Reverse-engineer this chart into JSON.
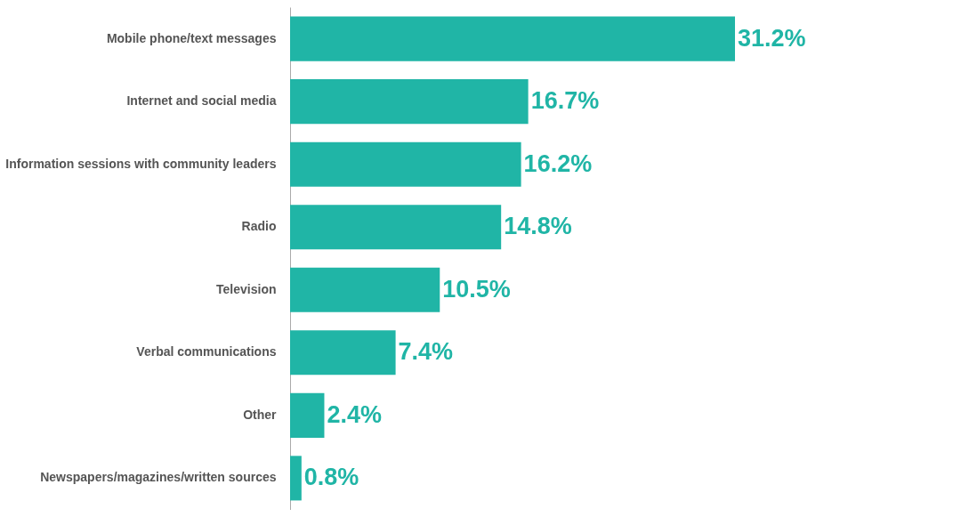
{
  "chart_data": {
    "type": "bar",
    "orientation": "horizontal",
    "categories": [
      "Mobile phone/text messages",
      "Internet and social media",
      "Information sessions with community leaders",
      "Radio",
      "Television",
      "Verbal communications",
      "Other",
      "Newspapers/magazines/written sources"
    ],
    "values": [
      31.2,
      16.7,
      16.2,
      14.8,
      10.5,
      7.4,
      2.4,
      0.8
    ],
    "value_labels": [
      "31.2%",
      "16.7%",
      "16.2%",
      "14.8%",
      "10.5%",
      "7.4%",
      "2.4%",
      "0.8%"
    ],
    "color": "#20b5a6",
    "tick_labels": "y"
  }
}
